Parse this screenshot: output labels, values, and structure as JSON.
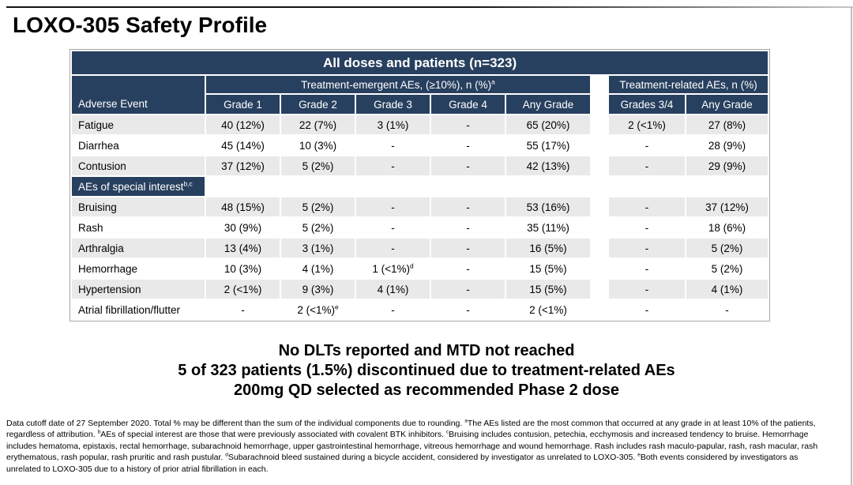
{
  "page": {
    "title": "LOXO-305 Safety Profile"
  },
  "colors": {
    "navy": "#28405F",
    "row_shade": "#E9E9E9",
    "row_plain": "#FFFFFF",
    "header_text": "#FFFFFF",
    "body_text": "#000000",
    "table_border": "#A8A8A8"
  },
  "table": {
    "banner": "All doses and patients (n=323)",
    "row_header_label": "Adverse Event",
    "group1_header": "Treatment-emergent AEs, (≥10%), n (%)^{a}",
    "group2_header": "Treatment-related AEs, n (%)",
    "columns_group1": [
      "Grade 1",
      "Grade 2",
      "Grade 3",
      "Grade 4",
      "Any Grade"
    ],
    "columns_group2": [
      "Grades 3/4",
      "Any Grade"
    ],
    "rows": [
      {
        "label": "Fatigue",
        "te": [
          "40 (12%)",
          "22 (7%)",
          "3 (1%)",
          "-",
          "65 (20%)"
        ],
        "tr": [
          "2 (<1%)",
          "27 (8%)"
        ]
      },
      {
        "label": "Diarrhea",
        "te": [
          "45 (14%)",
          "10 (3%)",
          "-",
          "-",
          "55 (17%)"
        ],
        "tr": [
          "-",
          "28 (9%)"
        ]
      },
      {
        "label": "Contusion",
        "te": [
          "37 (12%)",
          "5 (2%)",
          "-",
          "-",
          "42 (13%)"
        ],
        "tr": [
          "-",
          "29 (9%)"
        ]
      },
      {
        "type": "section",
        "label": "AEs of special interest^{b,c}"
      },
      {
        "label": "Bruising",
        "te": [
          "48 (15%)",
          "5 (2%)",
          "-",
          "-",
          "53 (16%)"
        ],
        "tr": [
          "-",
          "37 (12%)"
        ]
      },
      {
        "label": "Rash",
        "te": [
          "30 (9%)",
          "5 (2%)",
          "-",
          "-",
          "35 (11%)"
        ],
        "tr": [
          "-",
          "18 (6%)"
        ]
      },
      {
        "label": "Arthralgia",
        "te": [
          "13 (4%)",
          "3 (1%)",
          "-",
          "-",
          "16 (5%)"
        ],
        "tr": [
          "-",
          "5 (2%)"
        ]
      },
      {
        "label": "Hemorrhage",
        "te": [
          "10 (3%)",
          "4 (1%)",
          "1 (<1%)^{d}",
          "-",
          "15 (5%)"
        ],
        "tr": [
          "-",
          "5 (2%)"
        ]
      },
      {
        "label": "Hypertension",
        "te": [
          "2 (<1%)",
          "9 (3%)",
          "4 (1%)",
          "-",
          "15 (5%)"
        ],
        "tr": [
          "-",
          "4 (1%)"
        ]
      },
      {
        "label": "Atrial fibrillation/flutter",
        "te": [
          "-",
          "2 (<1%)^{e}",
          "-",
          "-",
          "2 (<1%)"
        ],
        "tr": [
          "-",
          "-"
        ]
      }
    ]
  },
  "highlights": {
    "line1": "No DLTs reported and MTD not reached",
    "line2": "5 of 323 patients (1.5%) discontinued due to treatment-related AEs",
    "line3": "200mg QD selected as recommended Phase 2 dose"
  },
  "footnote": "Data cutoff date of 27 September 2020. Total % may be different than the sum of the individual components due to rounding. ^{a}The AEs listed are the most common that occurred at any grade in at least 10% of the patients, regardless of attribution. ^{b}AEs of special interest are those that were previously associated with covalent BTK inhibitors. ^{c}Bruising includes contusion, petechia, ecchymosis and increased tendency to bruise. Hemorrhage includes hematoma, epistaxis, rectal hemorrhage, subarachnoid hemorrhage, upper gastrointestinal hemorrhage, vitreous hemorrhage and wound hemorrhage. Rash includes rash maculo-papular, rash, rash macular, rash erythematous, rash popular, rash pruritic and rash pustular. ^{d}Subarachnoid bleed sustained during a bicycle accident, considered by investigator as unrelated to LOXO-305. ^{e}Both events considered by investigators as unrelated to LOXO-305 due to a history of prior atrial fibrillation in each."
}
